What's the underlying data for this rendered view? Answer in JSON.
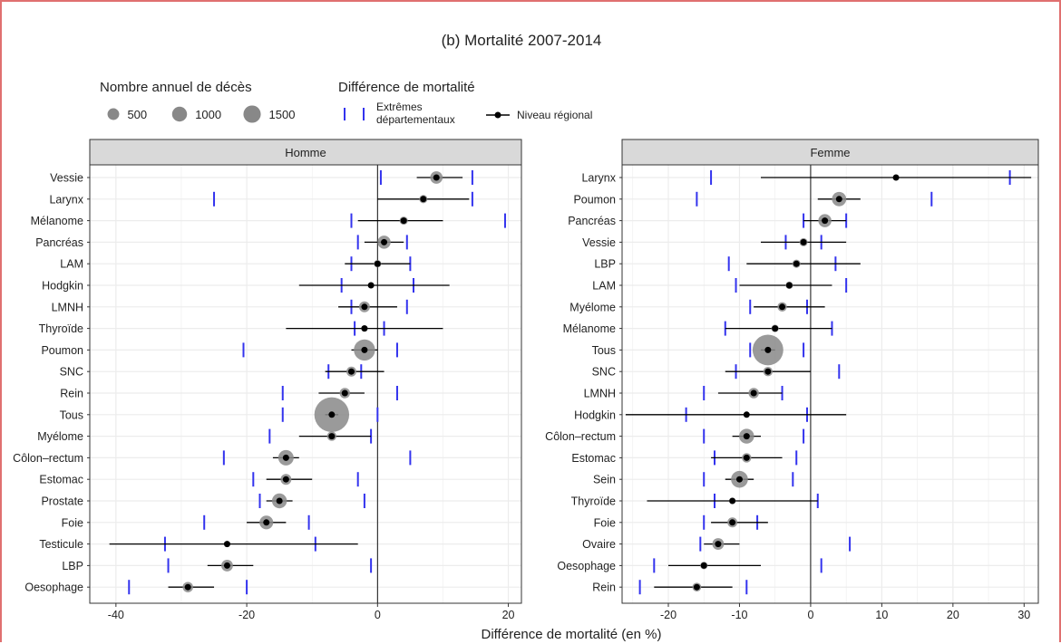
{
  "chart_data": {
    "type": "scatter",
    "title": "(b) Mortalité 2007-2014",
    "xlabel": "Différence de mortalité (en %)",
    "legend": {
      "size_title": "Nombre annuel de décès",
      "size_entries": [
        {
          "label": "500",
          "value": 500
        },
        {
          "label": "1000",
          "value": 1000
        },
        {
          "label": "1500",
          "value": 1500
        }
      ],
      "diff_title": "Différence de mortalité",
      "dept_label_1": "Extrêmes",
      "dept_label_2": "départementaux",
      "regional_label": "Niveau régional"
    },
    "colors": {
      "dept_extremes": "#3333ee",
      "regional": "#000000",
      "bubble": "#888888"
    },
    "panels": [
      {
        "label": "Homme",
        "xlim": [
          -44,
          22
        ],
        "ticks": [
          -40,
          -20,
          0,
          20
        ],
        "tick_labels": [
          "-40",
          "-20",
          "0",
          "20"
        ],
        "rows": [
          {
            "name": "Vessie",
            "est": 9,
            "lo": 6,
            "hi": 13,
            "dmin": 0.5,
            "dmax": 14.5,
            "deaths": 600
          },
          {
            "name": "Larynx",
            "est": 7,
            "lo": 0,
            "hi": 14,
            "dmin": -25,
            "dmax": 14.5,
            "deaths": 150
          },
          {
            "name": "Mélanome",
            "est": 4,
            "lo": -3,
            "hi": 10,
            "dmin": -4,
            "dmax": 19.5,
            "deaths": 150
          },
          {
            "name": "Pancréas",
            "est": 1,
            "lo": -2,
            "hi": 4,
            "dmin": -3,
            "dmax": 4.5,
            "deaths": 700
          },
          {
            "name": "LAM",
            "est": 0,
            "lo": -5,
            "hi": 5,
            "dmin": -4,
            "dmax": 5,
            "deaths": 100
          },
          {
            "name": "Hodgkin",
            "est": -1,
            "lo": -12,
            "hi": 11,
            "dmin": -5.5,
            "dmax": 5.5,
            "deaths": 30
          },
          {
            "name": "LMNH",
            "est": -2,
            "lo": -6,
            "hi": 3,
            "dmin": -4,
            "dmax": 4.5,
            "deaths": 400
          },
          {
            "name": "Thyroïde",
            "est": -2,
            "lo": -14,
            "hi": 10,
            "dmin": -3.5,
            "dmax": 1,
            "deaths": 50
          },
          {
            "name": "Poumon",
            "est": -2,
            "lo": -4,
            "hi": 0,
            "dmin": -20.5,
            "dmax": 3,
            "deaths": 2500
          },
          {
            "name": "SNC",
            "est": -4,
            "lo": -8,
            "hi": 1,
            "dmin": -7.5,
            "dmax": -2.5,
            "deaths": 300
          },
          {
            "name": "Rein",
            "est": -5,
            "lo": -9,
            "hi": -2,
            "dmin": -14.5,
            "dmax": 3,
            "deaths": 350
          },
          {
            "name": "Tous",
            "est": -7,
            "lo": -8,
            "hi": -6,
            "dmin": -14.5,
            "dmax": 0,
            "deaths": 8000
          },
          {
            "name": "Myélome",
            "est": -7,
            "lo": -12,
            "hi": -1,
            "dmin": -16.5,
            "dmax": -1,
            "deaths": 250
          },
          {
            "name": "Côlon–rectum",
            "est": -14,
            "lo": -16,
            "hi": -12,
            "dmin": -23.5,
            "dmax": 5,
            "deaths": 1100
          },
          {
            "name": "Estomac",
            "est": -14,
            "lo": -17,
            "hi": -10,
            "dmin": -19,
            "dmax": -3,
            "deaths": 400
          },
          {
            "name": "Prostate",
            "est": -15,
            "lo": -17,
            "hi": -13,
            "dmin": -18,
            "dmax": -2,
            "deaths": 1000
          },
          {
            "name": "Foie",
            "est": -17,
            "lo": -20,
            "hi": -14,
            "dmin": -26.5,
            "dmax": -10.5,
            "deaths": 800
          },
          {
            "name": "Testicule",
            "est": -23,
            "lo": -41,
            "hi": -3,
            "dmin": -32.5,
            "dmax": -9.5,
            "deaths": 10
          },
          {
            "name": "LBP",
            "est": -23,
            "lo": -26,
            "hi": -19,
            "dmin": -32,
            "dmax": -1,
            "deaths": 500
          },
          {
            "name": "Oesophage",
            "est": -29,
            "lo": -32,
            "hi": -25,
            "dmin": -38,
            "dmax": -20,
            "deaths": 350
          }
        ]
      },
      {
        "label": "Femme",
        "xlim": [
          -26.5,
          32
        ],
        "ticks": [
          -20,
          -10,
          0,
          10,
          20,
          30
        ],
        "tick_labels": [
          "-20",
          "-10",
          "0",
          "10",
          "20",
          "30"
        ],
        "rows": [
          {
            "name": "Larynx",
            "est": 12,
            "lo": -7,
            "hi": 31,
            "dmin": -14,
            "dmax": 28,
            "deaths": 20
          },
          {
            "name": "Poumon",
            "est": 4,
            "lo": 1,
            "hi": 7,
            "dmin": -16,
            "dmax": 17,
            "deaths": 900
          },
          {
            "name": "Pancréas",
            "est": 2,
            "lo": -1,
            "hi": 5,
            "dmin": -1,
            "dmax": 5,
            "deaths": 700
          },
          {
            "name": "Vessie",
            "est": -1,
            "lo": -7,
            "hi": 5,
            "dmin": -3.5,
            "dmax": 1.5,
            "deaths": 150
          },
          {
            "name": "LBP",
            "est": -2,
            "lo": -9,
            "hi": 7,
            "dmin": -11.5,
            "dmax": 3.5,
            "deaths": 150
          },
          {
            "name": "LAM",
            "est": -3,
            "lo": -10,
            "hi": 3,
            "dmin": -10.5,
            "dmax": 5,
            "deaths": 100
          },
          {
            "name": "Myélome",
            "est": -4,
            "lo": -8,
            "hi": 2,
            "dmin": -8.5,
            "dmax": -0.5,
            "deaths": 250
          },
          {
            "name": "Mélanome",
            "est": -5,
            "lo": -12,
            "hi": 3,
            "dmin": -12,
            "dmax": 3,
            "deaths": 100
          },
          {
            "name": "Tous",
            "est": -6,
            "lo": -7,
            "hi": -5,
            "dmin": -8.5,
            "dmax": -1,
            "deaths": 6000
          },
          {
            "name": "SNC",
            "est": -6,
            "lo": -12,
            "hi": 0,
            "dmin": -10.5,
            "dmax": 4,
            "deaths": 250
          },
          {
            "name": "LMNH",
            "est": -8,
            "lo": -13,
            "hi": -4,
            "dmin": -15,
            "dmax": -4,
            "deaths": 350
          },
          {
            "name": "Hodgkin",
            "est": -9,
            "lo": -26,
            "hi": 5,
            "dmin": -17.5,
            "dmax": -0.5,
            "deaths": 20
          },
          {
            "name": "Côlon–rectum",
            "est": -9,
            "lo": -11,
            "hi": -7,
            "dmin": -15,
            "dmax": -1,
            "deaths": 1000
          },
          {
            "name": "Estomac",
            "est": -9,
            "lo": -14,
            "hi": -4,
            "dmin": -13.5,
            "dmax": -2,
            "deaths": 250
          },
          {
            "name": "Sein",
            "est": -10,
            "lo": -12,
            "hi": -8,
            "dmin": -15,
            "dmax": -2.5,
            "deaths": 1400
          },
          {
            "name": "Thyroïde",
            "est": -11,
            "lo": -23,
            "hi": 1,
            "dmin": -13.5,
            "dmax": 1,
            "deaths": 40
          },
          {
            "name": "Foie",
            "est": -11,
            "lo": -14,
            "hi": -6,
            "dmin": -15,
            "dmax": -7.5,
            "deaths": 300
          },
          {
            "name": "Ovaire",
            "est": -13,
            "lo": -15,
            "hi": -10,
            "dmin": -15.5,
            "dmax": 5.5,
            "deaths": 500
          },
          {
            "name": "Oesophage",
            "est": -15,
            "lo": -20,
            "hi": -7,
            "dmin": -22,
            "dmax": 1.5,
            "deaths": 100
          },
          {
            "name": "Rein",
            "est": -16,
            "lo": -22,
            "hi": -11,
            "dmin": -24,
            "dmax": -9,
            "deaths": 200
          }
        ]
      }
    ]
  }
}
